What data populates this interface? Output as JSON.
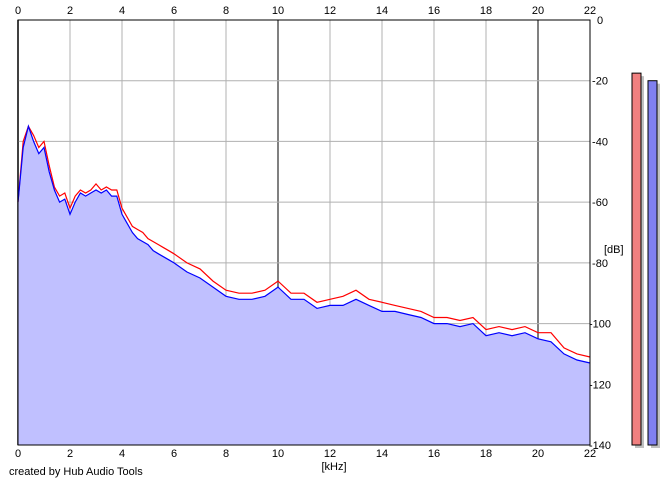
{
  "footer": "created by Hub Audio Tools",
  "chart_data": {
    "type": "area",
    "xlabel": "[kHz]",
    "ylabel": "[dB]",
    "xlim": [
      0,
      22
    ],
    "ylim": [
      -140,
      0
    ],
    "x_ticks": [
      "0",
      "2",
      "4",
      "6",
      "8",
      "10",
      "12",
      "14",
      "16",
      "18",
      "20",
      "22"
    ],
    "y_ticks": [
      "0",
      "-20",
      "-40",
      "-60",
      "-80",
      "-100",
      "-120",
      "-140"
    ],
    "grid": true,
    "x": [
      0,
      0.2,
      0.4,
      0.6,
      0.8,
      1.0,
      1.2,
      1.4,
      1.6,
      1.8,
      2.0,
      2.2,
      2.4,
      2.6,
      2.8,
      3.0,
      3.2,
      3.4,
      3.6,
      3.8,
      4.0,
      4.2,
      4.4,
      4.6,
      4.8,
      5.0,
      5.2,
      5.4,
      5.6,
      5.8,
      6.0,
      6.5,
      7.0,
      7.5,
      8.0,
      8.5,
      9.0,
      9.5,
      10.0,
      10.5,
      11.0,
      11.5,
      12.0,
      12.5,
      13.0,
      13.5,
      14.0,
      14.5,
      15.0,
      15.5,
      16.0,
      16.5,
      17.0,
      17.5,
      18.0,
      18.5,
      19.0,
      19.5,
      20.0,
      20.5,
      21.0,
      21.5,
      22.0
    ],
    "series": [
      {
        "color": "#ff0000",
        "values": [
          -60,
          -40,
          -35,
          -38,
          -42,
          -40,
          -48,
          -55,
          -58,
          -57,
          -62,
          -58,
          -56,
          -57,
          -56,
          -54,
          -56,
          -55,
          -56,
          -56,
          -62,
          -65,
          -68,
          -69,
          -70,
          -72,
          -73,
          -74,
          -75,
          -76,
          -77,
          -80,
          -82,
          -86,
          -89,
          -90,
          -90,
          -89,
          -86,
          -90,
          -90,
          -93,
          -92,
          -91,
          -89,
          -92,
          -93,
          -94,
          -95,
          -96,
          -98,
          -98,
          -99,
          -98,
          -102,
          -101,
          -102,
          -101,
          -103,
          -103,
          -108,
          -110,
          -111
        ]
      },
      {
        "color": "#0000ff",
        "values": [
          -60,
          -42,
          -35,
          -40,
          -44,
          -42,
          -50,
          -56,
          -60,
          -59,
          -64,
          -60,
          -57,
          -58,
          -57,
          -56,
          -57,
          -56,
          -58,
          -58,
          -64,
          -67,
          -70,
          -72,
          -73,
          -74,
          -76,
          -77,
          -78,
          -79,
          -80,
          -83,
          -85,
          -88,
          -91,
          -92,
          -92,
          -91,
          -88,
          -92,
          -92,
          -95,
          -94,
          -94,
          -92,
          -94,
          -96,
          -96,
          -97,
          -98,
          -100,
          -100,
          -101,
          -100,
          -104,
          -103,
          -104,
          -103,
          -105,
          -106,
          -110,
          -112,
          -113
        ]
      }
    ],
    "level_meters": [
      {
        "color": "#f08080",
        "value_db": -17.5
      },
      {
        "color": "#8080f0",
        "value_db": -20
      }
    ],
    "fill_color": "#c0c0ff"
  }
}
